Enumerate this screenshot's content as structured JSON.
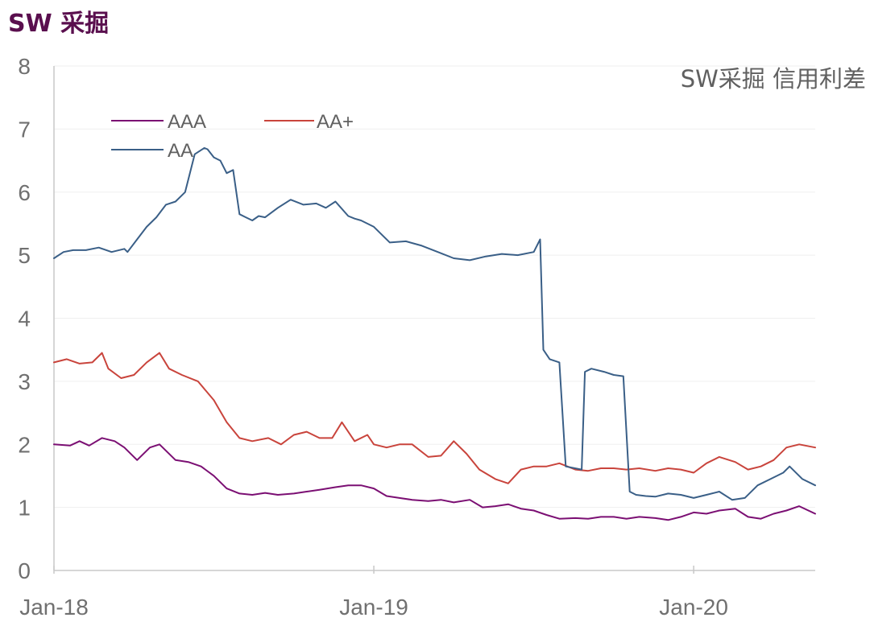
{
  "header": {
    "title": "SW 采掘"
  },
  "chart_data": {
    "type": "line",
    "title": "SW采掘 信用利差",
    "xlabel": "",
    "ylabel": "",
    "ylim": [
      0,
      8
    ],
    "yticks": [
      "0",
      "1",
      "2",
      "3",
      "4",
      "5",
      "6",
      "7",
      "8"
    ],
    "xlim": [
      2018.0,
      2020.38
    ],
    "xticks": [
      {
        "value": 2018.0,
        "label": "Jan-18"
      },
      {
        "value": 2019.0,
        "label": "Jan-19"
      },
      {
        "value": 2020.0,
        "label": "Jan-20"
      }
    ],
    "grid": true,
    "legend_position": "top-left",
    "series": [
      {
        "name": "AAA",
        "color": "#7b0f73",
        "x": [
          2018.0,
          2018.05,
          2018.08,
          2018.11,
          2018.15,
          2018.19,
          2018.22,
          2018.26,
          2018.3,
          2018.33,
          2018.38,
          2018.42,
          2018.46,
          2018.5,
          2018.54,
          2018.58,
          2018.62,
          2018.66,
          2018.7,
          2018.75,
          2018.79,
          2018.83,
          2018.88,
          2018.92,
          2018.96,
          2019.0,
          2019.04,
          2019.08,
          2019.12,
          2019.17,
          2019.21,
          2019.25,
          2019.3,
          2019.34,
          2019.38,
          2019.42,
          2019.46,
          2019.5,
          2019.54,
          2019.58,
          2019.63,
          2019.67,
          2019.71,
          2019.75,
          2019.79,
          2019.83,
          2019.88,
          2019.92,
          2019.96,
          2020.0,
          2020.04,
          2020.08,
          2020.13,
          2020.17,
          2020.21,
          2020.25,
          2020.29,
          2020.33,
          2020.38
        ],
        "values": [
          2.0,
          1.98,
          2.05,
          1.98,
          2.1,
          2.05,
          1.95,
          1.75,
          1.95,
          2.0,
          1.75,
          1.72,
          1.65,
          1.5,
          1.3,
          1.22,
          1.2,
          1.23,
          1.2,
          1.22,
          1.25,
          1.28,
          1.32,
          1.35,
          1.35,
          1.3,
          1.18,
          1.15,
          1.12,
          1.1,
          1.12,
          1.08,
          1.12,
          1.0,
          1.02,
          1.05,
          0.98,
          0.95,
          0.88,
          0.82,
          0.83,
          0.82,
          0.85,
          0.85,
          0.82,
          0.85,
          0.83,
          0.8,
          0.85,
          0.92,
          0.9,
          0.95,
          0.98,
          0.85,
          0.82,
          0.9,
          0.95,
          1.02,
          0.9
        ]
      },
      {
        "name": "AA+",
        "color": "#c9443c",
        "x": [
          2018.0,
          2018.04,
          2018.08,
          2018.12,
          2018.15,
          2018.17,
          2018.21,
          2018.25,
          2018.29,
          2018.33,
          2018.36,
          2018.4,
          2018.45,
          2018.5,
          2018.54,
          2018.58,
          2018.62,
          2018.67,
          2018.71,
          2018.75,
          2018.79,
          2018.83,
          2018.87,
          2018.9,
          2018.94,
          2018.98,
          2019.0,
          2019.04,
          2019.08,
          2019.12,
          2019.17,
          2019.21,
          2019.25,
          2019.29,
          2019.33,
          2019.38,
          2019.42,
          2019.46,
          2019.5,
          2019.54,
          2019.58,
          2019.63,
          2019.67,
          2019.71,
          2019.75,
          2019.79,
          2019.83,
          2019.88,
          2019.92,
          2019.96,
          2020.0,
          2020.04,
          2020.08,
          2020.13,
          2020.17,
          2020.21,
          2020.25,
          2020.29,
          2020.33,
          2020.38
        ],
        "values": [
          3.3,
          3.35,
          3.28,
          3.3,
          3.45,
          3.2,
          3.05,
          3.1,
          3.3,
          3.45,
          3.2,
          3.1,
          3.0,
          2.7,
          2.35,
          2.1,
          2.05,
          2.1,
          2.0,
          2.15,
          2.2,
          2.1,
          2.1,
          2.35,
          2.05,
          2.15,
          2.0,
          1.95,
          2.0,
          2.0,
          1.8,
          1.82,
          2.05,
          1.85,
          1.6,
          1.45,
          1.38,
          1.6,
          1.65,
          1.65,
          1.7,
          1.6,
          1.58,
          1.62,
          1.62,
          1.6,
          1.62,
          1.58,
          1.62,
          1.6,
          1.55,
          1.7,
          1.8,
          1.72,
          1.6,
          1.65,
          1.75,
          1.95,
          2.0,
          1.95
        ]
      },
      {
        "name": "AA",
        "color": "#3a5f87",
        "x": [
          2018.0,
          2018.03,
          2018.06,
          2018.1,
          2018.14,
          2018.18,
          2018.22,
          2018.23,
          2018.26,
          2018.29,
          2018.32,
          2018.35,
          2018.38,
          2018.41,
          2018.44,
          2018.47,
          2018.48,
          2018.5,
          2018.52,
          2018.54,
          2018.56,
          2018.58,
          2018.6,
          2018.62,
          2018.64,
          2018.66,
          2018.7,
          2018.74,
          2018.78,
          2018.82,
          2018.85,
          2018.88,
          2018.92,
          2018.94,
          2018.96,
          2019.0,
          2019.05,
          2019.1,
          2019.15,
          2019.2,
          2019.25,
          2019.3,
          2019.35,
          2019.4,
          2019.45,
          2019.5,
          2019.52,
          2019.53,
          2019.55,
          2019.58,
          2019.6,
          2019.65,
          2019.66,
          2019.68,
          2019.72,
          2019.75,
          2019.78,
          2019.8,
          2019.82,
          2019.85,
          2019.88,
          2019.92,
          2019.96,
          2020.0,
          2020.04,
          2020.08,
          2020.12,
          2020.16,
          2020.2,
          2020.24,
          2020.28,
          2020.3,
          2020.34,
          2020.38
        ],
        "values": [
          4.95,
          5.05,
          5.08,
          5.08,
          5.12,
          5.05,
          5.1,
          5.05,
          5.25,
          5.45,
          5.6,
          5.8,
          5.85,
          6.0,
          6.6,
          6.7,
          6.68,
          6.55,
          6.5,
          6.3,
          6.35,
          5.65,
          5.6,
          5.55,
          5.62,
          5.6,
          5.75,
          5.88,
          5.8,
          5.82,
          5.75,
          5.85,
          5.62,
          5.58,
          5.55,
          5.45,
          5.2,
          5.22,
          5.15,
          5.05,
          4.95,
          4.92,
          4.98,
          5.02,
          5.0,
          5.05,
          5.25,
          3.5,
          3.35,
          3.3,
          1.65,
          1.6,
          3.15,
          3.2,
          3.15,
          3.1,
          3.08,
          1.25,
          1.2,
          1.18,
          1.17,
          1.22,
          1.2,
          1.15,
          1.2,
          1.25,
          1.12,
          1.15,
          1.35,
          1.45,
          1.55,
          1.65,
          1.45,
          1.35
        ]
      }
    ]
  }
}
